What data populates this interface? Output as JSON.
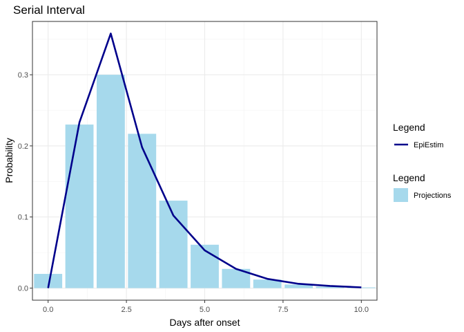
{
  "chart_data": {
    "type": "bar",
    "title": "Serial Interval",
    "xlabel": "Days after onset",
    "ylabel": "Probability",
    "xlim": [
      -0.5,
      10.5
    ],
    "ylim": [
      -0.017,
      0.375
    ],
    "x_ticks": [
      0.0,
      2.5,
      5.0,
      7.5,
      10.0
    ],
    "x_tick_labels": [
      "0.0",
      "2.5",
      "5.0",
      "7.5",
      "10.0"
    ],
    "y_ticks": [
      0.0,
      0.1,
      0.2,
      0.3
    ],
    "y_tick_labels": [
      "0.0",
      "0.1",
      "0.2",
      "0.3"
    ],
    "grid": true,
    "legend_position": "right",
    "bars": {
      "name": "Projections",
      "color": "#a6d9ec",
      "x": [
        0,
        1,
        2,
        3,
        4,
        5,
        6,
        7,
        8,
        9,
        10
      ],
      "values": [
        0.02,
        0.23,
        0.3,
        0.217,
        0.123,
        0.061,
        0.027,
        0.012,
        0.005,
        0.002,
        0.001
      ]
    },
    "line": {
      "name": "EpiEstim",
      "color": "#00008b",
      "x": [
        0,
        1,
        2,
        3,
        4,
        5,
        6,
        7,
        8,
        9,
        10
      ],
      "values": [
        0.0,
        0.233,
        0.358,
        0.198,
        0.102,
        0.053,
        0.027,
        0.013,
        0.006,
        0.003,
        0.001
      ]
    },
    "legends": [
      {
        "title": "Legend",
        "key_type": "line",
        "label": "EpiEstim"
      },
      {
        "title": "Legend",
        "key_type": "fill",
        "label": "Projections"
      }
    ]
  }
}
